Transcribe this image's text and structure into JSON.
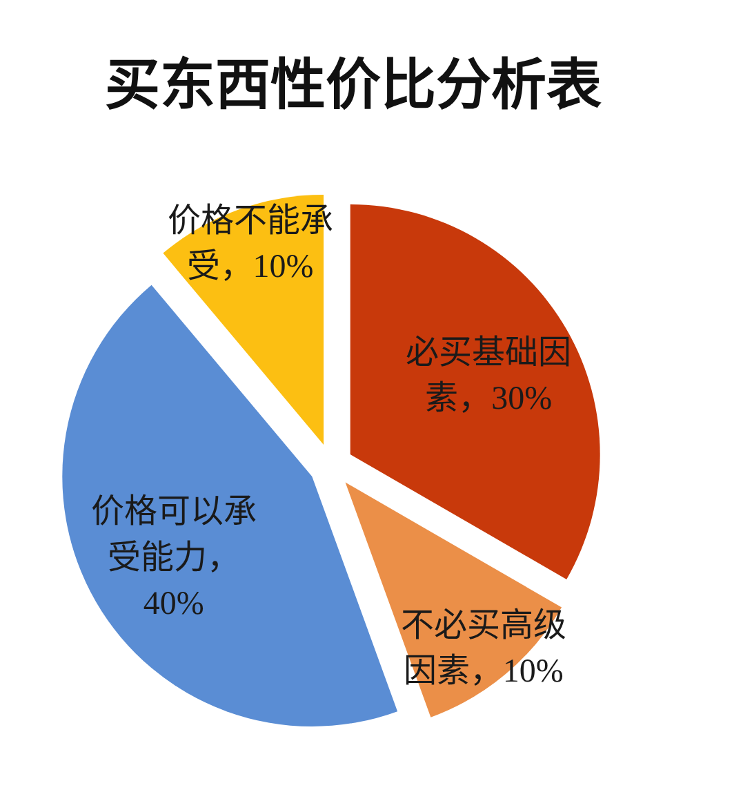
{
  "chart_data": {
    "type": "pie",
    "title": "买东西性价比分析表",
    "categories": [
      "必买基础因素",
      "不必买高级因素",
      "价格可以承受能力",
      "价格不能承受"
    ],
    "values": [
      30,
      10,
      40,
      10
    ],
    "value_labels": [
      "，30%",
      "，10%",
      "，40%",
      "，10%"
    ],
    "colors": [
      "#c8390b",
      "#eb8f48",
      "#5a8dd4",
      "#fcbf12"
    ]
  }
}
